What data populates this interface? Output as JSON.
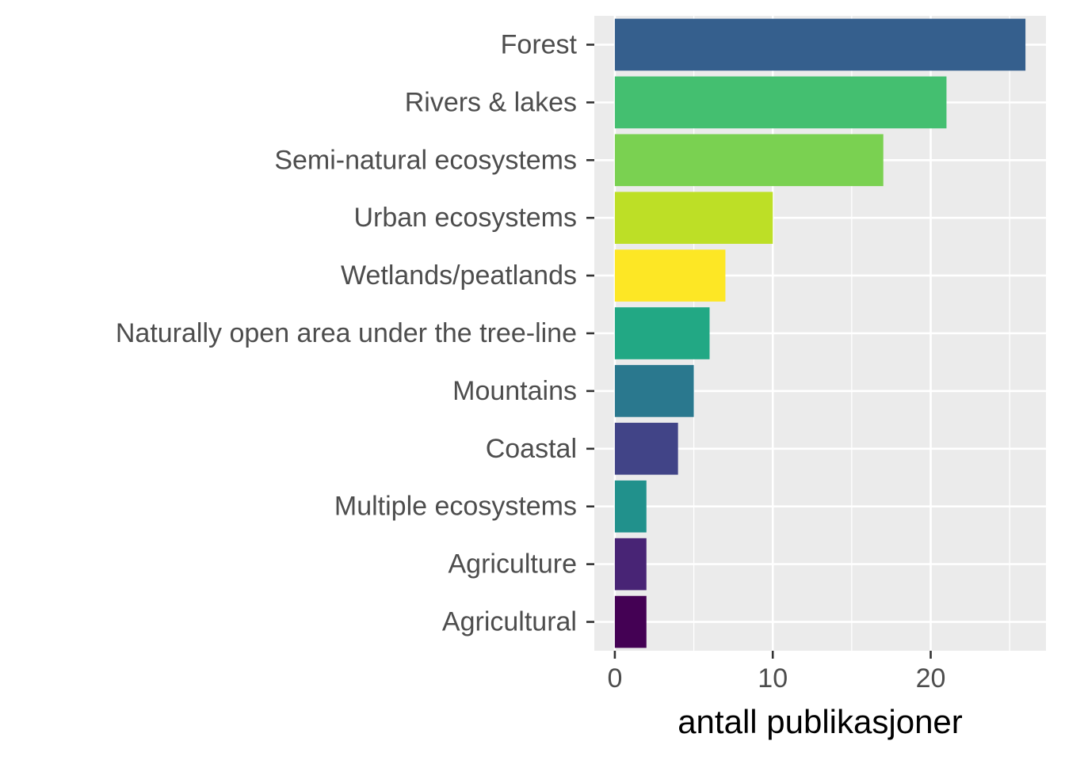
{
  "chart_data": {
    "type": "bar",
    "orientation": "horizontal",
    "title": "",
    "xlabel": "antall publikasjoner",
    "ylabel": "",
    "xlim": [
      -1.3,
      27.3
    ],
    "xticks": [
      0,
      10,
      20
    ],
    "grid": true,
    "legend": "none",
    "panel_background": "#ebebeb",
    "categories": [
      "Forest",
      "Rivers & lakes",
      "Semi-natural ecosystems",
      "Urban ecosystems",
      "Wetlands/peatlands",
      "Naturally open area under the tree-line",
      "Mountains",
      "Coastal",
      "Multiple ecosystems",
      "Agriculture",
      "Agricultural"
    ],
    "values": [
      26,
      21,
      17,
      10,
      7,
      6,
      5,
      4,
      2,
      2,
      2
    ],
    "colors": [
      "#355f8d",
      "#44bf70",
      "#7ad151",
      "#bddf26",
      "#fde725",
      "#22a884",
      "#2a788e",
      "#414487",
      "#21918c",
      "#482475",
      "#440154"
    ]
  }
}
